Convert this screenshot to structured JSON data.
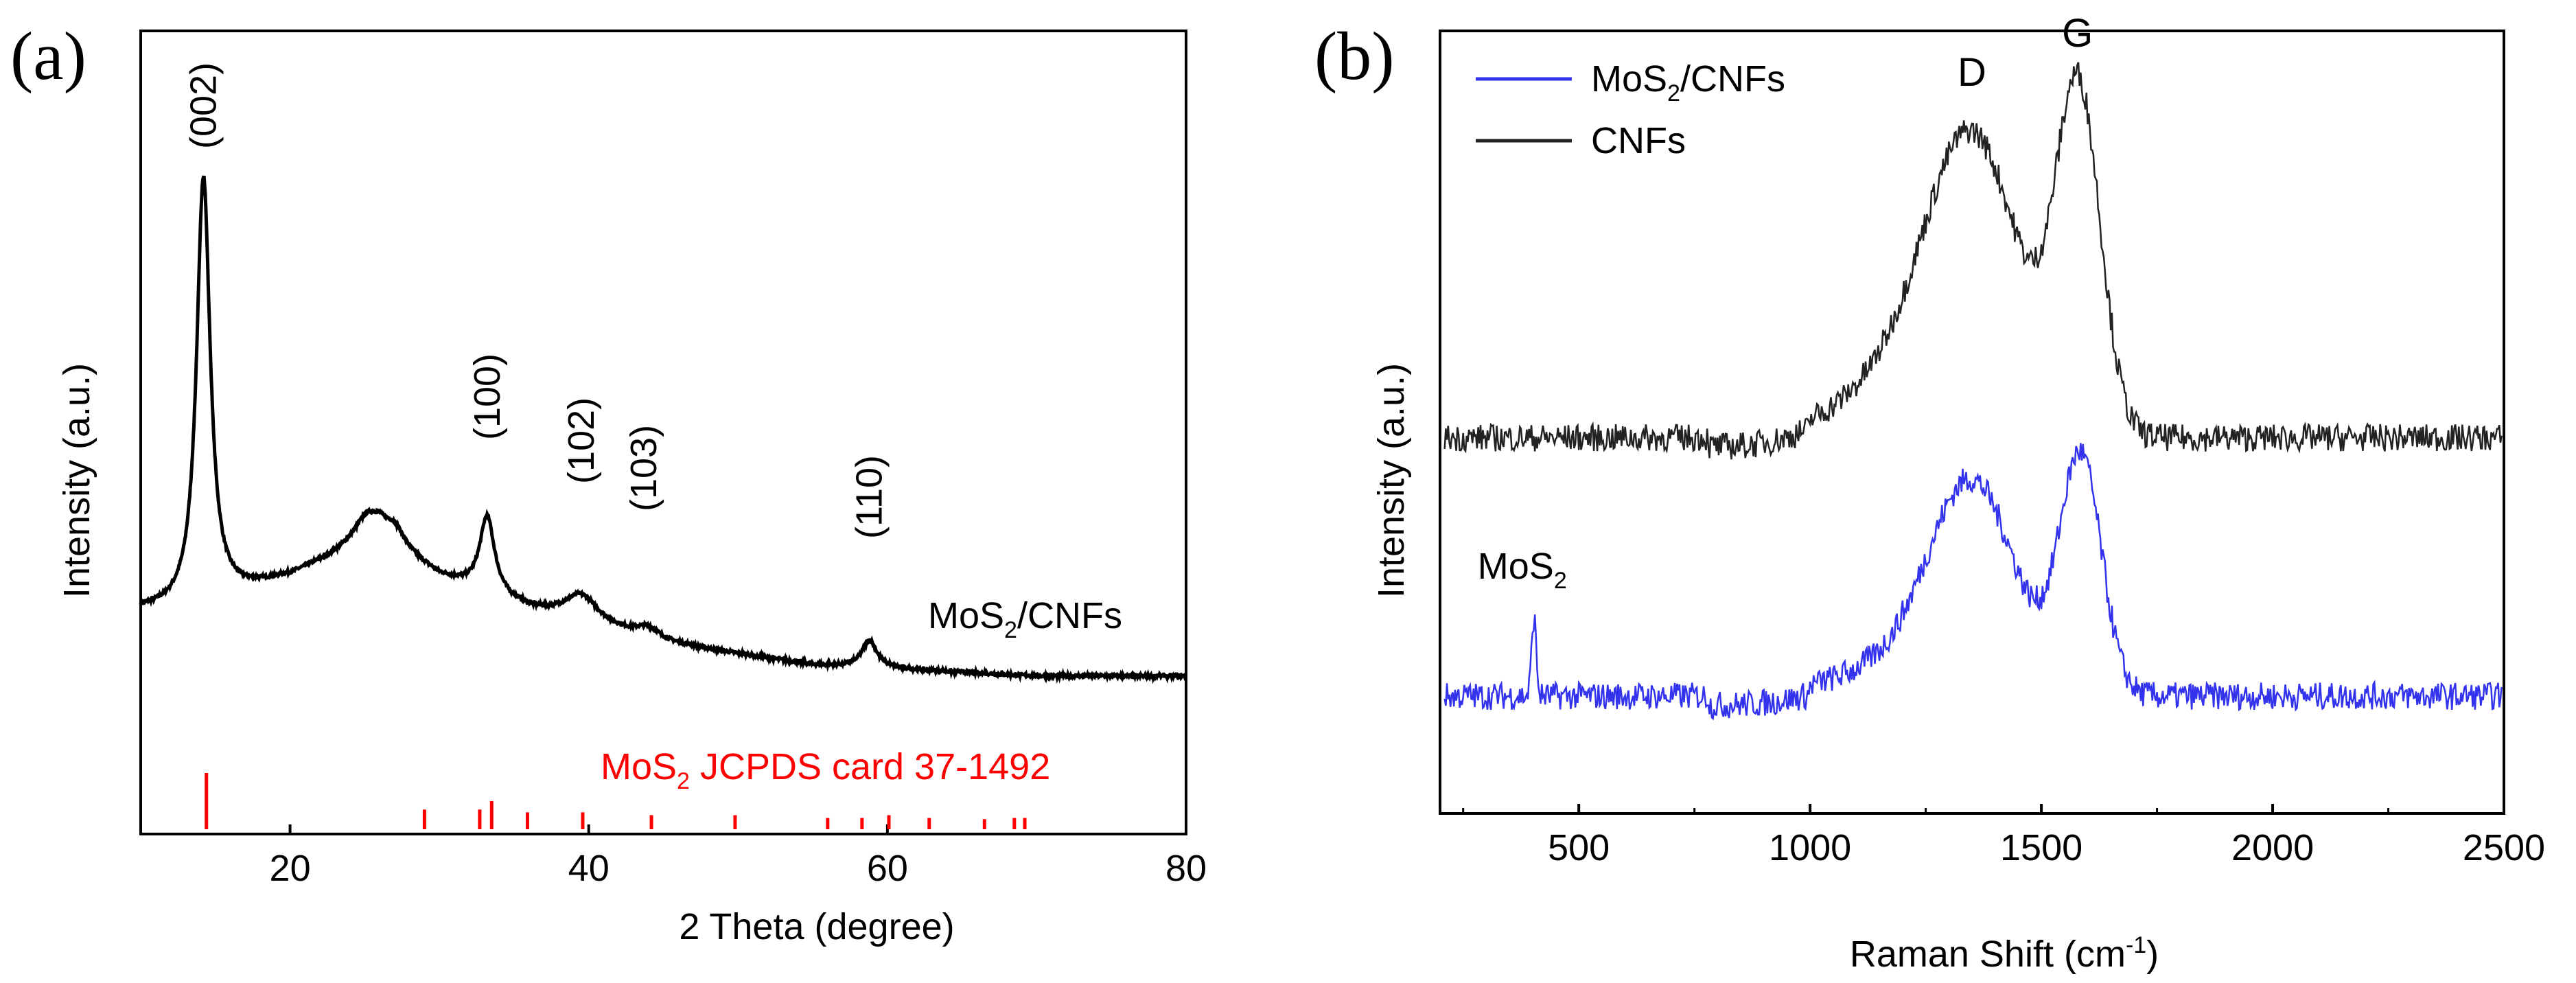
{
  "chart_data": [
    {
      "panel": "(a)",
      "type": "line",
      "xlabel": "2 Theta  (degree)",
      "ylabel": "Intensity (a.u.)",
      "xlim": [
        10,
        80
      ],
      "xticks": [
        20,
        40,
        60,
        80
      ],
      "tick_labels": [
        "20",
        "40",
        "60",
        "80"
      ],
      "series_label": {
        "main": "MoS",
        "sub": "2",
        "rest": "/CNFs"
      },
      "line_color": "#000000",
      "trace": {
        "baseline": [
          [
            10,
            0.12
          ],
          [
            13,
            0.12
          ],
          [
            20,
            0.18
          ],
          [
            26,
            0.25
          ],
          [
            30,
            0.18
          ],
          [
            36,
            0.12
          ],
          [
            45,
            0.06
          ],
          [
            55,
            0.02
          ],
          [
            70,
            0.0
          ],
          [
            80,
            0.0
          ]
        ],
        "peaks": [
          {
            "center": 14.2,
            "height": 0.78,
            "width": 0.55
          },
          {
            "center": 25.2,
            "height": 0.05,
            "width": 1.2
          },
          {
            "center": 27.0,
            "height": 0.03,
            "width": 0.8
          },
          {
            "center": 33.2,
            "height": 0.14,
            "width": 0.6
          },
          {
            "center": 39.5,
            "height": 0.05,
            "width": 1.4
          },
          {
            "center": 44.0,
            "height": 0.02,
            "width": 1.0
          },
          {
            "center": 58.8,
            "height": 0.05,
            "width": 0.6
          }
        ]
      },
      "peak_labels": [
        {
          "text": "(002)",
          "x": 14.2,
          "level": 0.96
        },
        {
          "text": "(100)",
          "x": 33.2,
          "level": 0.43
        },
        {
          "text": "(102)",
          "x": 39.5,
          "level": 0.35
        },
        {
          "text": "(103)",
          "x": 43.7,
          "level": 0.3
        },
        {
          "text": "(110)",
          "x": 58.8,
          "level": 0.25
        }
      ],
      "reference": {
        "label": {
          "main": "MoS",
          "sub": "2",
          "rest": " JCPDS card 37-1492"
        },
        "color": "#ff0000",
        "lines": [
          [
            14.4,
            1.0
          ],
          [
            29.0,
            0.35
          ],
          [
            32.7,
            0.35
          ],
          [
            33.5,
            0.5
          ],
          [
            35.9,
            0.3
          ],
          [
            39.6,
            0.3
          ],
          [
            44.2,
            0.25
          ],
          [
            49.8,
            0.25
          ],
          [
            56.0,
            0.2
          ],
          [
            58.3,
            0.2
          ],
          [
            60.1,
            0.25
          ],
          [
            62.8,
            0.2
          ],
          [
            66.5,
            0.18
          ],
          [
            68.5,
            0.2
          ],
          [
            69.2,
            0.2
          ]
        ]
      }
    },
    {
      "panel": "(b)",
      "type": "line",
      "xlabel": "Raman Shift (cm",
      "xlabel_sup": "-1",
      "xlabel_end": ")",
      "ylabel": "Intensity (a.u.)",
      "xlim": [
        200,
        2500
      ],
      "xticks": [
        500,
        1000,
        1500,
        2000,
        2500
      ],
      "tick_labels": [
        "500",
        "1000",
        "1500",
        "2000",
        "2500"
      ],
      "series": [
        {
          "name": {
            "main": "MoS",
            "sub": "2",
            "rest": "/CNFs"
          },
          "color": "#3333ee",
          "level": 0.15,
          "noise": 0.035,
          "peaks": [
            {
              "center": 1350,
              "height": 0.27,
              "width": 95
            },
            {
              "center": 1585,
              "height": 0.3,
              "width": 45
            },
            {
              "center": 1150,
              "height": 0.03,
              "width": 120
            },
            {
              "center": 403,
              "height": 0.1,
              "width": 5
            }
          ]
        },
        {
          "name": {
            "main": "CNFs",
            "sub": "",
            "rest": ""
          },
          "color": "#222222",
          "level": 0.48,
          "noise": 0.035,
          "peaks": [
            {
              "center": 1350,
              "height": 0.38,
              "width": 105
            },
            {
              "center": 1580,
              "height": 0.43,
              "width": 48
            },
            {
              "center": 1150,
              "height": 0.05,
              "width": 120
            }
          ]
        }
      ],
      "annotations": [
        {
          "text": "D",
          "x": 1350,
          "level": 0.93
        },
        {
          "text": "G",
          "x": 1578,
          "level": 0.98
        }
      ],
      "mos2_label": {
        "main": "MoS",
        "sub": "2",
        "x": 400,
        "level": 0.3
      }
    }
  ]
}
